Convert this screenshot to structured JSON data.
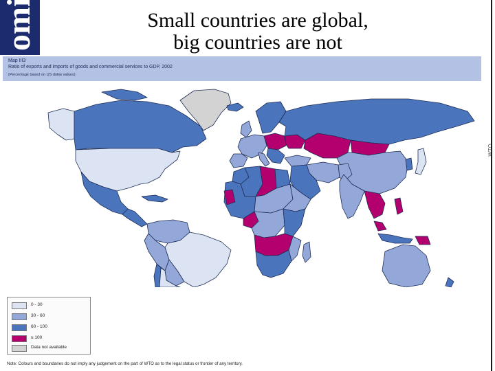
{
  "logo": {
    "text": "omi"
  },
  "slide": {
    "title_line1": "Small countries are global,",
    "title_line2": "big countries are not"
  },
  "map": {
    "label": "Map III3",
    "caption": "Ratio of exports and imports of goods and commercial services to GDP, 2002",
    "subcaption": "(Percentage based on US dollar values)",
    "side_mark": "WTO"
  },
  "legend": {
    "items": [
      {
        "label": "0 - 30",
        "color": "#dce4f3"
      },
      {
        "label": "30 - 60",
        "color": "#93a8d8"
      },
      {
        "label": "60 - 100",
        "color": "#4a75bd"
      },
      {
        "label": "≥ 100",
        "color": "#b4006f"
      },
      {
        "label": "Data not available",
        "color": "#d3d3d3"
      }
    ]
  },
  "footnote": "Note: Colours and boundaries do not imply any judgement on the part of WTO as to the legal status or frontier of any territory.",
  "colors": {
    "c0_30": "#dce4f3",
    "c30_60": "#93a8d8",
    "c60_100": "#4a75bd",
    "c100": "#b4006f",
    "na": "#d3d3d3",
    "logo_bg": "#1c2b6e",
    "header_band": "#b3c2e4"
  }
}
